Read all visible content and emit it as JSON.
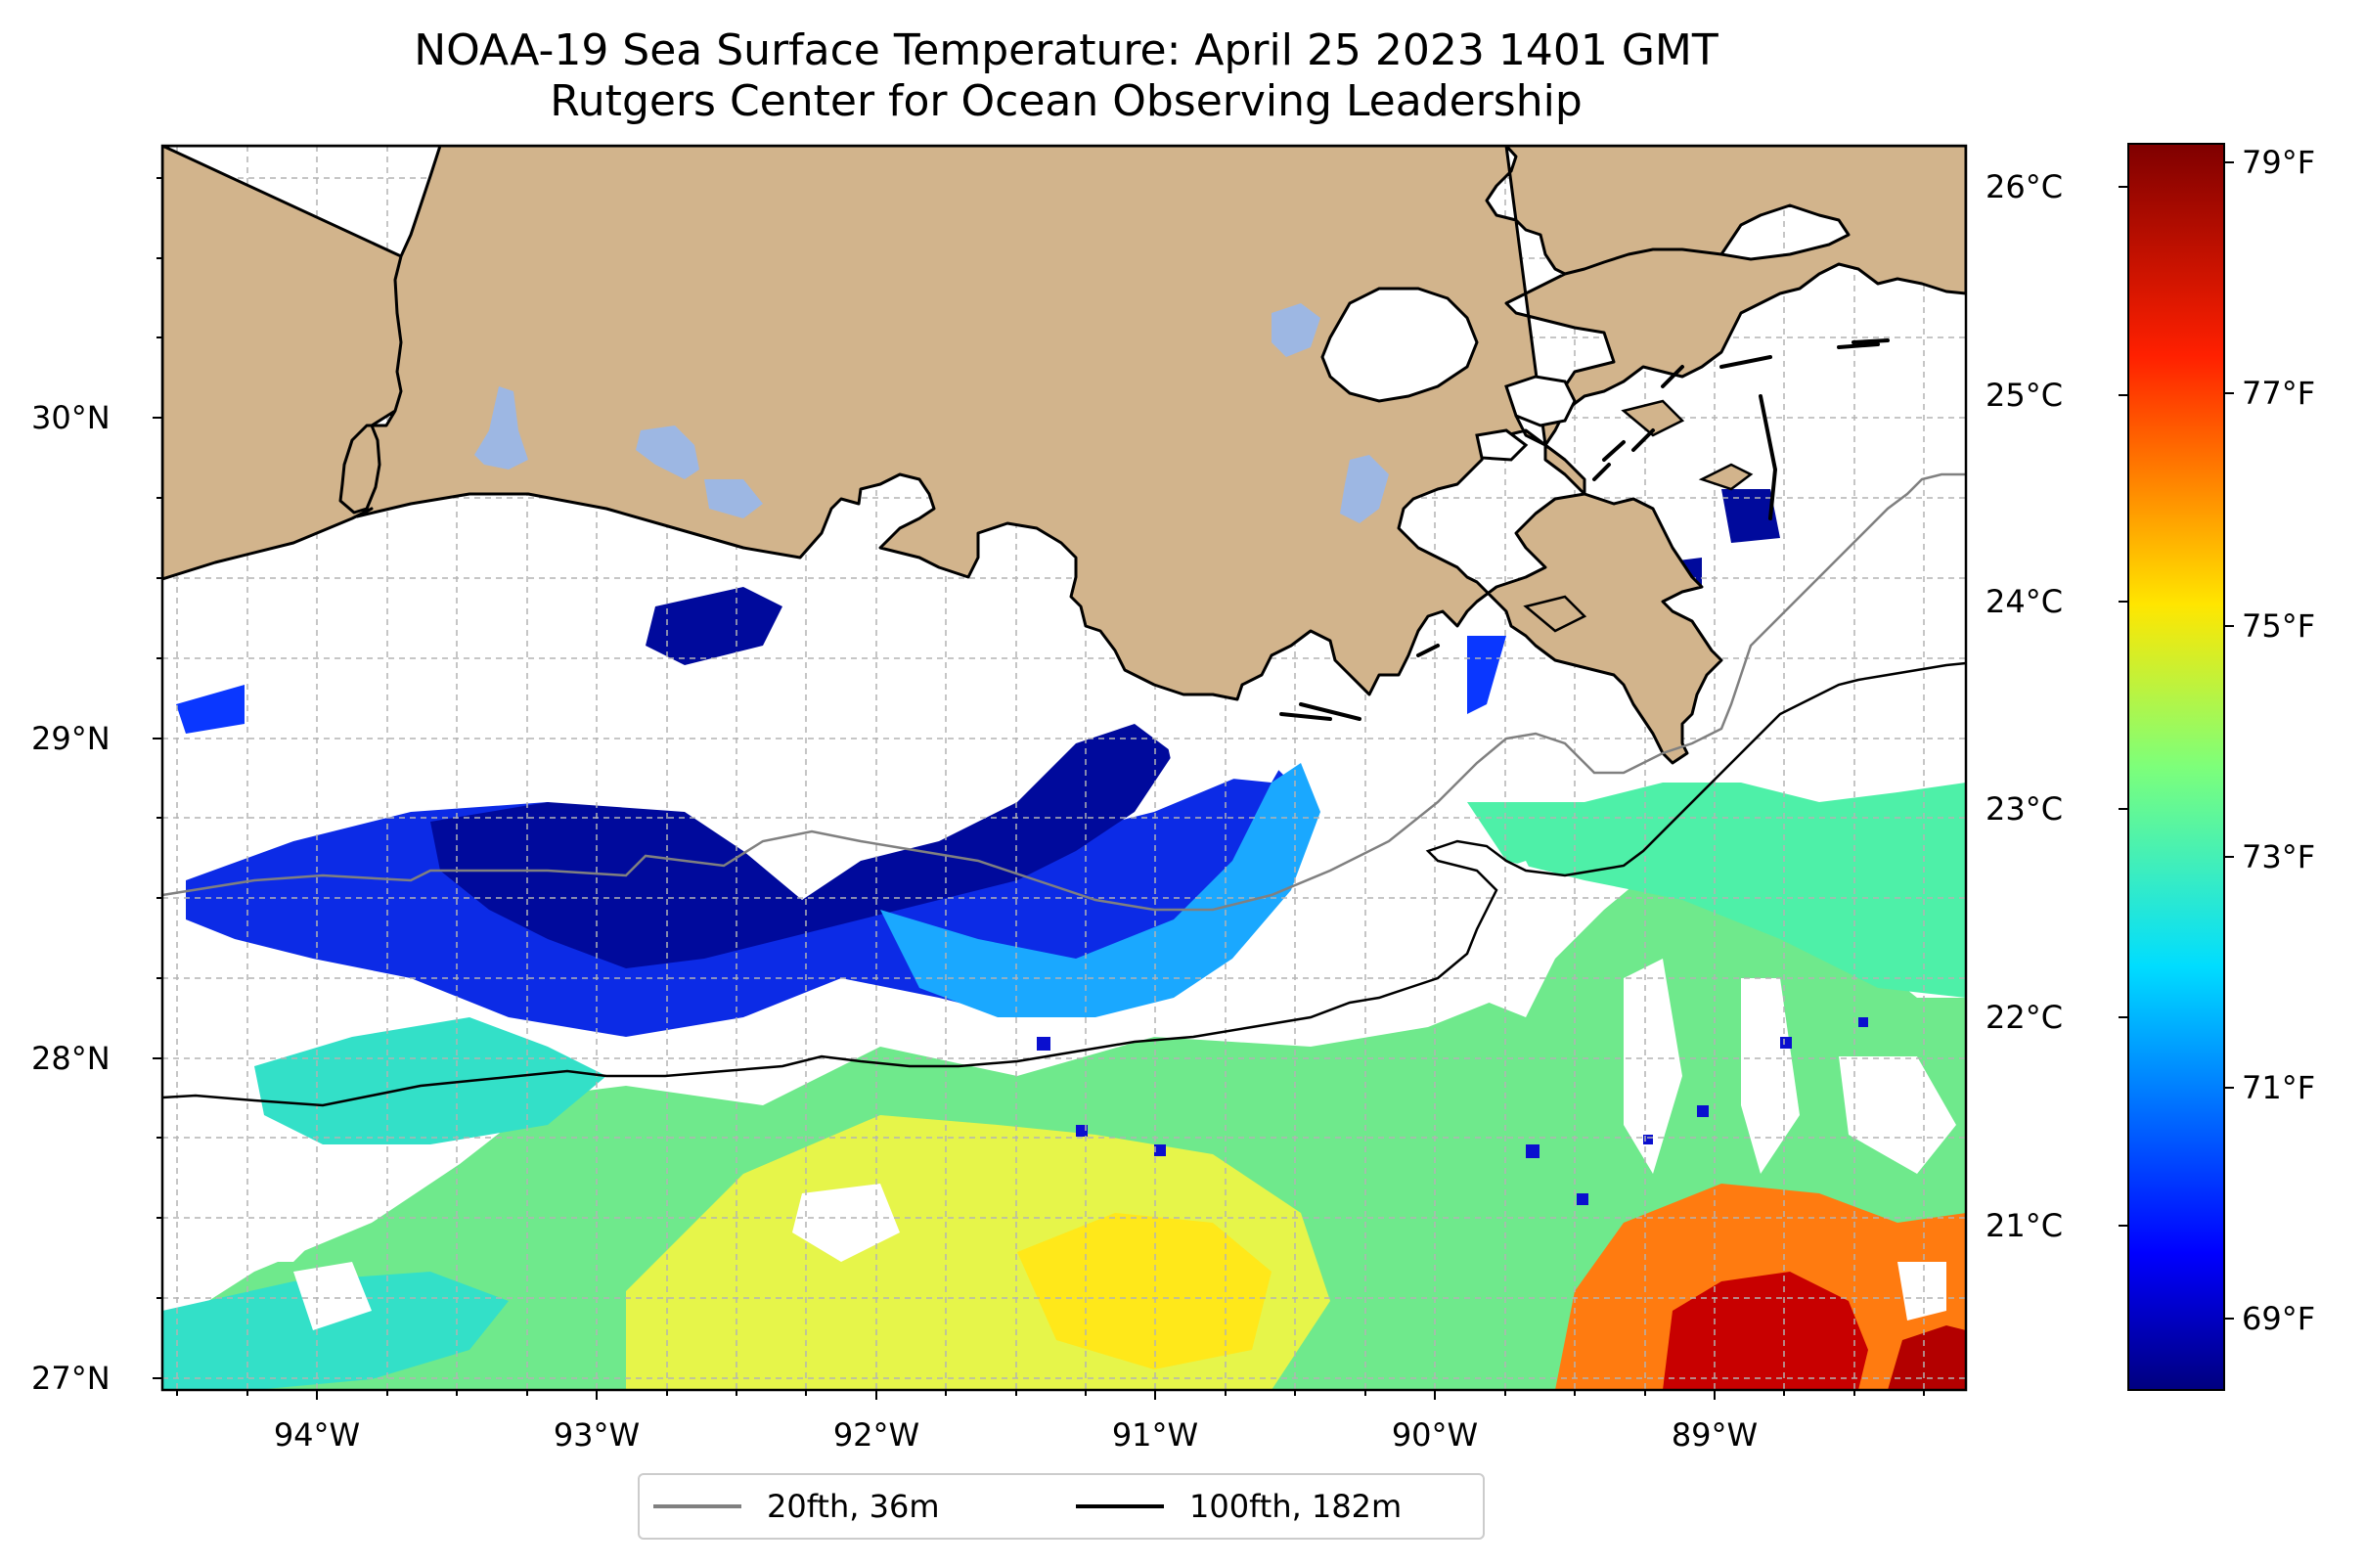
{
  "title": {
    "line1": "NOAA-19 Sea Surface Temperature: April 25 2023 1401 GMT",
    "line2": "Rutgers Center for Ocean Observing Leadership"
  },
  "axes": {
    "lat_labels": [
      "30°N",
      "29°N",
      "28°N",
      "27°N"
    ],
    "lon_labels": [
      "94°W",
      "93°W",
      "92°W",
      "91°W",
      "90°W",
      "89°W"
    ]
  },
  "colorbar": {
    "colormap": "jet",
    "celsius_labels": [
      "26°C",
      "25°C",
      "24°C",
      "23°C",
      "22°C",
      "21°C"
    ],
    "fahrenheit_labels": [
      "79°F",
      "77°F",
      "75°F",
      "73°F",
      "71°F",
      "69°F"
    ],
    "range_f": [
      68.3,
      79.2
    ]
  },
  "legend": {
    "items": [
      {
        "label": "20fth, 36m",
        "color": "#808080"
      },
      {
        "label": "100fth, 182m",
        "color": "#000000"
      }
    ]
  },
  "colors": {
    "land": "#d2b48c",
    "inland_water": "#9db7e3",
    "coast": "#000000",
    "contour_20fth": "#808080",
    "contour_100fth": "#000000"
  }
}
